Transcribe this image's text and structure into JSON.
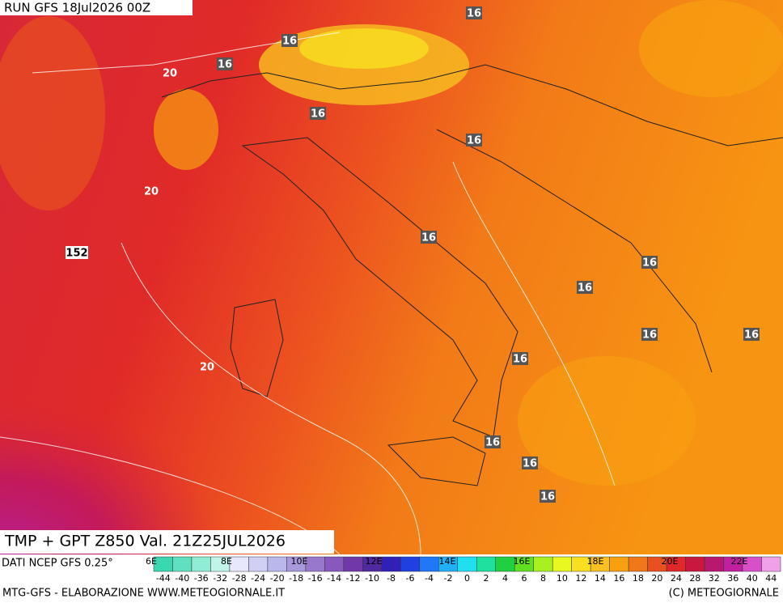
{
  "header": {
    "run": "RUN GFS 18Jul2026 00Z"
  },
  "map": {
    "title": "TMP + GPT Z850 Val. 21Z25JUL2026",
    "contour_labels": [
      "16",
      "16",
      "16",
      "16",
      "16",
      "16",
      "16",
      "16",
      "16",
      "16",
      "16",
      "16",
      "16",
      "16",
      "20",
      "20",
      "20",
      "152"
    ],
    "longitudes": [
      "6E",
      "8E",
      "10E",
      "12E",
      "14E",
      "16E",
      "18E",
      "20E",
      "22E"
    ]
  },
  "colorbar": {
    "source": "DATI NCEP GFS 0.25°",
    "levels": [
      -44,
      -40,
      -36,
      -32,
      -28,
      -24,
      -20,
      -18,
      -16,
      -14,
      -12,
      -10,
      -8,
      -6,
      -4,
      -2,
      0,
      2,
      4,
      6,
      8,
      10,
      12,
      14,
      16,
      18,
      20,
      24,
      28,
      32,
      36,
      40,
      44
    ],
    "colors": [
      "#3ad8b0",
      "#60e0c0",
      "#90ecd4",
      "#c0f4e8",
      "#e8e8fc",
      "#d0d0f4",
      "#b8b8ec",
      "#a898dc",
      "#9878cc",
      "#8858bc",
      "#7038a8",
      "#5028a0",
      "#3020b8",
      "#2040e0",
      "#2078f8",
      "#20b0f8",
      "#20e0f0",
      "#20e0a0",
      "#20d040",
      "#60e020",
      "#a8f020",
      "#e8f820",
      "#f8e020",
      "#f8c020",
      "#f8a010",
      "#f07818",
      "#e85020",
      "#e02828",
      "#c81840",
      "#b81870",
      "#c020a0",
      "#d850c8",
      "#f0a0e8"
    ]
  },
  "footer": {
    "left": "MTG-GFS - ELABORAZIONE WWW.METEOGIORNALE.IT",
    "right": "(C) METEOGIORNALE"
  }
}
